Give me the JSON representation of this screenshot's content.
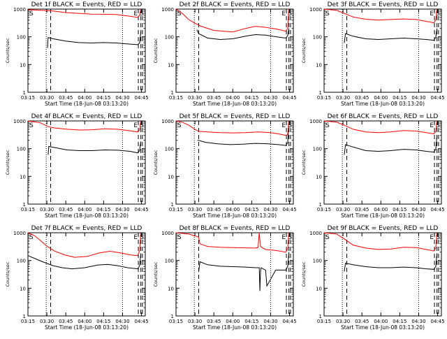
{
  "chart_data": [
    {
      "type": "line",
      "title": "Det 1f BLACK = Events, RED = LLD",
      "xlabel": "Start Time (18-Jun-08 03:13:20)",
      "ylabel": "Counts/sec",
      "yscale": "log",
      "ylim": [
        1,
        1000
      ],
      "xlim": [
        "03:15",
        "04:48"
      ],
      "x_ticks": [
        "03:15",
        "03:30",
        "03:45",
        "04:00",
        "04:15",
        "04:30",
        "04:45"
      ],
      "y_ticks": [
        "1",
        "10",
        "100",
        "1000"
      ],
      "markers": [
        "S",
        "E",
        "S"
      ],
      "series": [
        {
          "color": "#000000",
          "x": [
            "03:30:30",
            "03:31:00",
            "03:35:00",
            "03:45:00",
            "03:55:00",
            "04:05:00",
            "04:15:00",
            "04:25:00",
            "04:35:00",
            "04:42:00",
            "04:43:30",
            "04:44:30"
          ],
          "values": [
            40,
            95,
            85,
            70,
            62,
            60,
            62,
            60,
            55,
            52,
            60,
            150
          ]
        },
        {
          "color": "#ff0000",
          "x": [
            "03:15:00",
            "03:25:00",
            "03:30:30",
            "03:35:00",
            "03:45:00",
            "03:55:00",
            "04:05:00",
            "04:15:00",
            "04:25:00",
            "04:35:00",
            "04:42:00",
            "04:43:30",
            "04:44:30"
          ],
          "values": [
            950,
            900,
            880,
            850,
            750,
            700,
            660,
            650,
            640,
            560,
            500,
            600,
            1000
          ]
        }
      ]
    },
    {
      "type": "line",
      "title": "Det 2f BLACK = Events, RED = LLD",
      "xlabel": "Start Time (18-Jun-08 03:13:20)",
      "ylabel": "Counts/sec",
      "yscale": "log",
      "ylim": [
        1,
        1000
      ],
      "xlim": [
        "03:15",
        "04:48"
      ],
      "x_ticks": [
        "03:15",
        "03:30",
        "03:45",
        "04:00",
        "04:15",
        "04:30",
        "04:45"
      ],
      "y_ticks": [
        "1",
        "10",
        "100",
        "1000"
      ],
      "markers": [
        "S",
        "E",
        "S"
      ],
      "series": [
        {
          "color": "#000000",
          "x": [
            "03:31:30",
            "03:33:00",
            "03:40:00",
            "03:50:00",
            "04:00:00",
            "04:10:00",
            "04:18:00",
            "04:26:00",
            "04:35:00",
            "04:42:00",
            "04:43:30",
            "04:44:30"
          ],
          "values": [
            180,
            130,
            90,
            80,
            85,
            105,
            120,
            115,
            100,
            90,
            110,
            200
          ]
        },
        {
          "color": "#ff0000",
          "x": [
            "03:15:00",
            "03:20:00",
            "03:25:00",
            "03:30:00",
            "03:35:00",
            "03:45:00",
            "04:00:00",
            "04:10:00",
            "04:18:00",
            "04:26:00",
            "04:35:00",
            "04:42:00",
            "04:43:30",
            "04:44:30"
          ],
          "values": [
            1000,
            700,
            420,
            310,
            240,
            170,
            150,
            200,
            240,
            220,
            190,
            160,
            200,
            1000
          ]
        }
      ]
    },
    {
      "type": "line",
      "title": "Det 3f BLACK = Events, RED = LLD",
      "xlabel": "Start Time (18-Jun-08 03:13:20)",
      "ylabel": "Counts/sec",
      "yscale": "log",
      "ylim": [
        1,
        1000
      ],
      "xlim": [
        "03:15",
        "04:48"
      ],
      "x_ticks": [
        "03:15",
        "03:30",
        "03:45",
        "04:00",
        "04:15",
        "04:30",
        "04:45"
      ],
      "y_ticks": [
        "1",
        "10",
        "100",
        "1000"
      ],
      "markers": [
        "S",
        "E",
        "S"
      ],
      "series": [
        {
          "color": "#000000",
          "x": [
            "03:31:00",
            "03:32:00",
            "03:38:00",
            "03:48:00",
            "03:58:00",
            "04:08:00",
            "04:18:00",
            "04:28:00",
            "04:36:00",
            "04:42:00",
            "04:43:30",
            "04:44:30"
          ],
          "values": [
            60,
            130,
            105,
            85,
            80,
            85,
            90,
            85,
            80,
            75,
            95,
            200
          ]
        },
        {
          "color": "#ff0000",
          "x": [
            "03:15:00",
            "03:25:00",
            "03:31:00",
            "03:38:00",
            "03:48:00",
            "03:58:00",
            "04:08:00",
            "04:18:00",
            "04:28:00",
            "04:36:00",
            "04:42:00",
            "04:43:30",
            "04:44:30"
          ],
          "values": [
            1000,
            900,
            700,
            520,
            430,
            400,
            420,
            440,
            420,
            360,
            320,
            400,
            1000
          ]
        }
      ]
    },
    {
      "type": "line",
      "title": "Det 4f BLACK = Events, RED = LLD",
      "xlabel": "Start Time (18-Jun-08 03:13:20)",
      "ylabel": "Counts/sec",
      "yscale": "log",
      "ylim": [
        1,
        1000
      ],
      "xlim": [
        "03:15",
        "04:48"
      ],
      "x_ticks": [
        "03:15",
        "03:30",
        "03:45",
        "04:00",
        "04:15",
        "04:30",
        "04:45"
      ],
      "y_ticks": [
        "1",
        "10",
        "100",
        "1000"
      ],
      "markers": [
        "S",
        "E",
        "S"
      ],
      "series": [
        {
          "color": "#000000",
          "x": [
            "03:31:00",
            "03:31:30",
            "03:36:00",
            "03:46:00",
            "03:56:00",
            "04:06:00",
            "04:16:00",
            "04:26:00",
            "04:36:00",
            "04:42:00",
            "04:43:30",
            "04:44:30"
          ],
          "values": [
            60,
            120,
            110,
            90,
            85,
            85,
            90,
            88,
            80,
            70,
            85,
            180
          ]
        },
        {
          "color": "#ff0000",
          "x": [
            "03:15:00",
            "03:25:00",
            "03:31:00",
            "03:36:00",
            "03:46:00",
            "03:56:00",
            "04:06:00",
            "04:16:00",
            "04:26:00",
            "04:36:00",
            "04:42:00",
            "04:43:30",
            "04:44:30"
          ],
          "values": [
            1000,
            850,
            620,
            560,
            500,
            470,
            480,
            520,
            500,
            440,
            400,
            480,
            1000
          ]
        }
      ]
    },
    {
      "type": "line",
      "title": "Det 5f BLACK = Events, RED = LLD",
      "xlabel": "Start Time (18-Jun-08 03:13:20)",
      "ylabel": "Counts/sec",
      "yscale": "log",
      "ylim": [
        1,
        1000
      ],
      "xlim": [
        "03:15",
        "04:48"
      ],
      "x_ticks": [
        "03:15",
        "03:30",
        "03:45",
        "04:00",
        "04:15",
        "04:30",
        "04:45"
      ],
      "y_ticks": [
        "1",
        "10",
        "100",
        "1000"
      ],
      "markers": [
        "S",
        "E",
        "S"
      ],
      "series": [
        {
          "color": "#000000",
          "x": [
            "03:32:00",
            "03:33:00",
            "03:38:00",
            "03:48:00",
            "03:58:00",
            "04:08:00",
            "04:18:00",
            "04:28:00",
            "04:36:00",
            "04:42:00",
            "04:43:30",
            "04:44:30"
          ],
          "values": [
            200,
            200,
            170,
            150,
            140,
            145,
            155,
            150,
            140,
            130,
            160,
            1000
          ]
        },
        {
          "color": "#ff0000",
          "x": [
            "03:15:00",
            "03:20:00",
            "03:25:00",
            "03:30:00",
            "03:33:00",
            "03:40:00",
            "03:50:00",
            "04:00:00",
            "04:10:00",
            "04:20:00",
            "04:30:00",
            "04:38:00",
            "04:42:00",
            "04:43:30",
            "04:44:30"
          ],
          "values": [
            1000,
            900,
            700,
            500,
            420,
            400,
            380,
            370,
            380,
            400,
            380,
            330,
            300,
            320,
            1000
          ]
        }
      ]
    },
    {
      "type": "line",
      "title": "Det 6f BLACK = Events, RED = LLD",
      "xlabel": "Start Time (18-Jun-08 03:13:20)",
      "ylabel": "Counts/sec",
      "yscale": "log",
      "ylim": [
        1,
        1000
      ],
      "xlim": [
        "03:15",
        "04:48"
      ],
      "x_ticks": [
        "03:15",
        "03:30",
        "03:45",
        "04:00",
        "04:15",
        "04:30",
        "04:45"
      ],
      "y_ticks": [
        "1",
        "10",
        "100",
        "1000"
      ],
      "markers": [
        "S",
        "E",
        "S"
      ],
      "series": [
        {
          "color": "#000000",
          "x": [
            "03:31:00",
            "03:32:00",
            "03:38:00",
            "03:48:00",
            "03:58:00",
            "04:08:00",
            "04:18:00",
            "04:28:00",
            "04:36:00",
            "04:42:00",
            "04:43:30",
            "04:44:30"
          ],
          "values": [
            60,
            140,
            115,
            85,
            80,
            85,
            95,
            90,
            80,
            75,
            95,
            300
          ]
        },
        {
          "color": "#ff0000",
          "x": [
            "03:15:00",
            "03:25:00",
            "03:31:00",
            "03:38:00",
            "03:48:00",
            "03:58:00",
            "04:08:00",
            "04:18:00",
            "04:28:00",
            "04:36:00",
            "04:42:00",
            "04:43:30",
            "04:44:30"
          ],
          "values": [
            1000,
            900,
            700,
            500,
            400,
            380,
            400,
            450,
            430,
            380,
            340,
            420,
            1000
          ]
        }
      ]
    },
    {
      "type": "line",
      "title": "Det 7f BLACK = Events, RED = LLD",
      "xlabel": "Start Time (18-Jun-08 03:13:20)",
      "ylabel": "Counts/sec",
      "yscale": "log",
      "ylim": [
        1,
        1000
      ],
      "xlim": [
        "03:15",
        "04:48"
      ],
      "x_ticks": [
        "03:15",
        "03:30",
        "03:45",
        "04:00",
        "04:15",
        "04:30",
        "04:45"
      ],
      "y_ticks": [
        "1",
        "10",
        "100",
        "1000"
      ],
      "markers": [
        "S",
        "E",
        "S"
      ],
      "series": [
        {
          "color": "#000000",
          "x": [
            "03:15:00",
            "03:22:00",
            "03:28:00",
            "03:35:00",
            "03:42:00",
            "03:50:00",
            "04:00:00",
            "04:10:00",
            "04:18:00",
            "04:26:00",
            "04:34:00",
            "04:42:00",
            "04:43:30",
            "04:44:30"
          ],
          "values": [
            150,
            110,
            85,
            65,
            55,
            50,
            55,
            68,
            72,
            65,
            55,
            50,
            65,
            180
          ]
        },
        {
          "color": "#ff0000",
          "x": [
            "03:15:00",
            "03:20:00",
            "03:25:00",
            "03:30:00",
            "03:36:00",
            "03:44:00",
            "03:52:00",
            "04:02:00",
            "04:12:00",
            "04:20:00",
            "04:28:00",
            "04:36:00",
            "04:42:00",
            "04:43:30",
            "04:44:30"
          ],
          "values": [
            1000,
            800,
            520,
            330,
            220,
            160,
            130,
            140,
            190,
            215,
            190,
            160,
            150,
            220,
            1000
          ]
        }
      ]
    },
    {
      "type": "line",
      "title": "Det 8f BLACK = Events, RED = LLD",
      "xlabel": "Start Time (18-Jun-08 03:13:20)",
      "ylabel": "Counts/sec",
      "yscale": "log",
      "ylim": [
        1,
        1000
      ],
      "xlim": [
        "03:15",
        "04:48"
      ],
      "x_ticks": [
        "03:15",
        "03:30",
        "03:45",
        "04:00",
        "04:15",
        "04:30",
        "04:45"
      ],
      "y_ticks": [
        "1",
        "10",
        "100",
        "1000"
      ],
      "markers": [
        "S",
        "E",
        "S"
      ],
      "series": [
        {
          "color": "#000000",
          "x": [
            "03:33:00",
            "03:34:00",
            "03:40:00",
            "03:50:00",
            "04:00:00",
            "04:10:00",
            "04:18:00",
            "04:21:00",
            "04:21:30",
            "04:22:00",
            "04:22:30",
            "04:24:00",
            "04:26:00",
            "04:27:00",
            "04:34:00",
            "04:42:00",
            "04:43:30",
            "04:44:30"
          ],
          "values": [
            40,
            90,
            70,
            62,
            60,
            58,
            55,
            55,
            8,
            40,
            55,
            50,
            45,
            12,
            45,
            45,
            60,
            200
          ]
        },
        {
          "color": "#ff0000",
          "x": [
            "03:15:00",
            "03:25:00",
            "03:33:00",
            "03:34:00",
            "03:40:00",
            "03:50:00",
            "04:00:00",
            "04:10:00",
            "04:18:00",
            "04:20:00",
            "04:21:00",
            "04:22:00",
            "04:24:00",
            "04:26:00",
            "04:34:00",
            "04:42:00",
            "04:43:30",
            "04:44:30"
          ],
          "values": [
            1000,
            900,
            700,
            400,
            320,
            300,
            290,
            285,
            280,
            290,
            1000,
            320,
            280,
            250,
            230,
            200,
            260,
            1000
          ]
        }
      ]
    },
    {
      "type": "line",
      "title": "Det 9f BLACK = Events, RED = LLD",
      "xlabel": "Start Time (18-Jun-08 03:13:20)",
      "ylabel": "Counts/sec",
      "yscale": "log",
      "ylim": [
        1,
        1000
      ],
      "xlim": [
        "03:15",
        "04:48"
      ],
      "x_ticks": [
        "03:15",
        "03:30",
        "03:45",
        "04:00",
        "04:15",
        "04:30",
        "04:45"
      ],
      "y_ticks": [
        "1",
        "10",
        "100",
        "1000"
      ],
      "markers": [
        "S",
        "E",
        "S"
      ],
      "series": [
        {
          "color": "#000000",
          "x": [
            "03:31:00",
            "03:32:00",
            "03:38:00",
            "03:48:00",
            "03:58:00",
            "04:08:00",
            "04:18:00",
            "04:28:00",
            "04:36:00",
            "04:42:00",
            "04:43:30",
            "04:44:30"
          ],
          "values": [
            40,
            80,
            70,
            60,
            55,
            55,
            58,
            55,
            50,
            48,
            60,
            180
          ]
        },
        {
          "color": "#ff0000",
          "x": [
            "03:15:00",
            "03:25:00",
            "03:31:00",
            "03:38:00",
            "03:48:00",
            "03:58:00",
            "04:08:00",
            "04:18:00",
            "04:28:00",
            "04:36:00",
            "04:42:00",
            "04:43:30",
            "04:44:30"
          ],
          "values": [
            1000,
            900,
            600,
            360,
            280,
            250,
            260,
            300,
            290,
            250,
            220,
            280,
            1000
          ]
        }
      ]
    }
  ]
}
